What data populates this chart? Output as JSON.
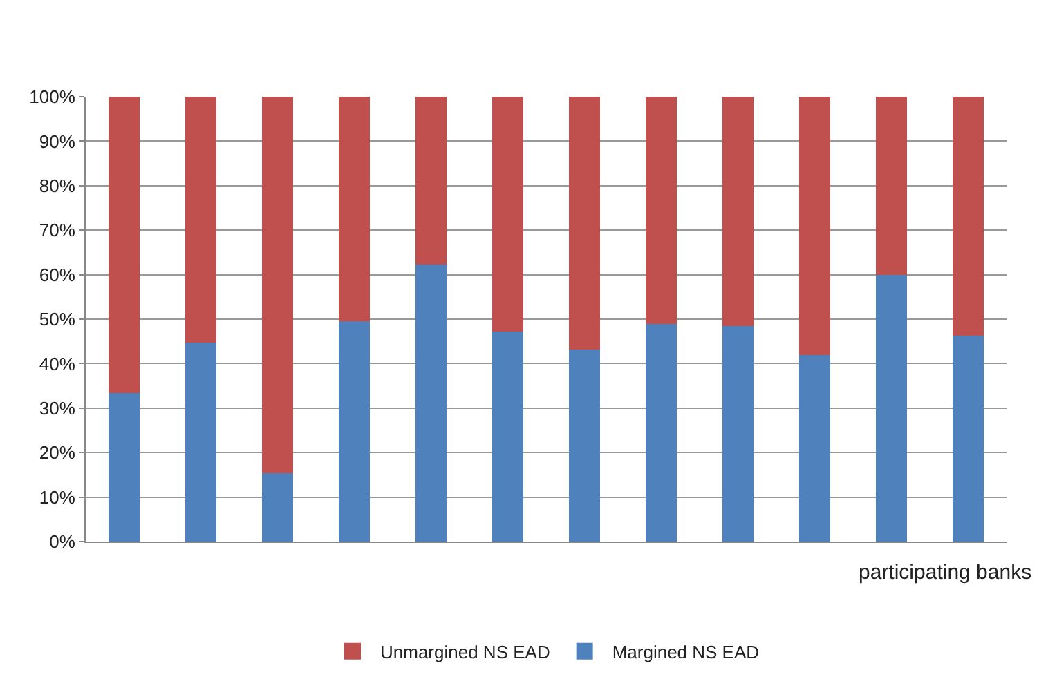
{
  "chart_data": {
    "type": "bar",
    "stacked": true,
    "xlabel": "participating banks",
    "categories": [
      null,
      null,
      null,
      null,
      null,
      null,
      null,
      null,
      null,
      null,
      null,
      null
    ],
    "series": [
      {
        "name": "Margined NS EAD",
        "color": "#4f81bd",
        "values": [
          33.4,
          44.7,
          15.4,
          49.6,
          62.3,
          47.2,
          43.2,
          48.9,
          48.4,
          42.0,
          59.9,
          46.3
        ]
      },
      {
        "name": "Unmargined NS EAD",
        "color": "#c0504d",
        "values": [
          66.6,
          55.3,
          84.6,
          50.4,
          37.7,
          52.8,
          56.8,
          51.1,
          51.6,
          58.0,
          40.1,
          53.7
        ]
      }
    ],
    "ylim": [
      0,
      100
    ],
    "yticks": [
      {
        "value": 0,
        "label": "0%"
      },
      {
        "value": 10,
        "label": "10%"
      },
      {
        "value": 20,
        "label": "20%"
      },
      {
        "value": 30,
        "label": "30%"
      },
      {
        "value": 40,
        "label": "40%"
      },
      {
        "value": 50,
        "label": "50%"
      },
      {
        "value": 60,
        "label": "60%"
      },
      {
        "value": 70,
        "label": "70%"
      },
      {
        "value": 80,
        "label": "80%"
      },
      {
        "value": 90,
        "label": "90%"
      },
      {
        "value": 100,
        "label": "100%"
      }
    ],
    "grid": "y",
    "legend": "bottom"
  }
}
